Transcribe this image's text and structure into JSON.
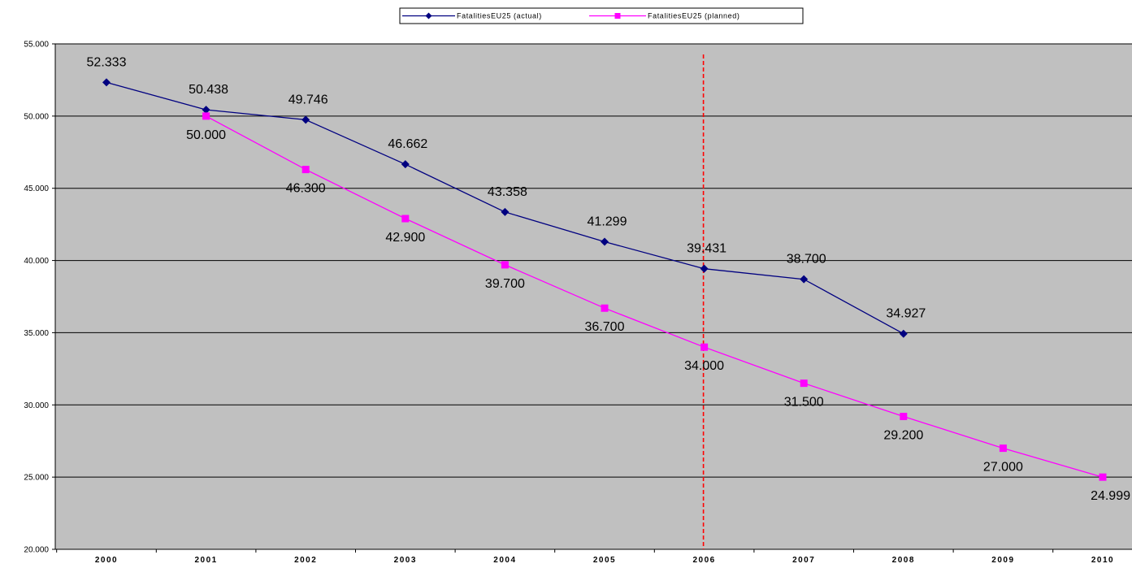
{
  "chart_data": {
    "type": "line",
    "categories": [
      "2000",
      "2001",
      "2002",
      "2003",
      "2004",
      "2005",
      "2006",
      "2007",
      "2008",
      "2009",
      "2010"
    ],
    "series": [
      {
        "name": "FatalitiesEU25 (actual)",
        "color": "#000080",
        "marker": "diamond",
        "values": [
          52333,
          50438,
          49746,
          46662,
          43358,
          41299,
          39431,
          38700,
          34927,
          null,
          null
        ],
        "labels": [
          "52.333",
          "50.438",
          "49.746",
          "46.662",
          "43.358",
          "41.299",
          "39.431",
          "38.700",
          "34.927",
          "",
          ""
        ]
      },
      {
        "name": "FatalitiesEU25 (planned)",
        "color": "#ff00ff",
        "marker": "square",
        "values": [
          null,
          50000,
          46300,
          42900,
          39700,
          36700,
          34000,
          31500,
          29200,
          27000,
          24999
        ],
        "labels": [
          "",
          "50.000",
          "46.300",
          "42.900",
          "39.700",
          "36.700",
          "34.000",
          "31.500",
          "29.200",
          "27.000",
          "24.999"
        ]
      }
    ],
    "ylim": [
      20000,
      55000
    ],
    "yticks": [
      20000,
      25000,
      30000,
      35000,
      40000,
      45000,
      50000,
      55000
    ],
    "ytick_labels": [
      "20.000",
      "25.000",
      "30.000",
      "35.000",
      "40.000",
      "45.000",
      "50.000",
      "55.000"
    ],
    "grid": true,
    "reference_line": {
      "category": "2006",
      "color": "#ff0000",
      "style": "dashed"
    },
    "legend_position": "top-center",
    "plot_background": "#c0c0c0",
    "title": "",
    "xlabel": "",
    "ylabel": ""
  }
}
